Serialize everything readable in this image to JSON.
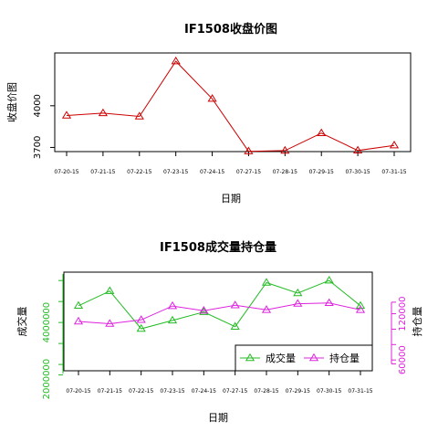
{
  "chart_data": [
    {
      "type": "line",
      "title": "IF1508收盘价图",
      "xlabel": "日期",
      "ylabel": "收盘价图",
      "categories": [
        "07-20-15",
        "07-21-15",
        "07-22-15",
        "07-23-15",
        "07-24-15",
        "07-27-15",
        "07-28-15",
        "07-29-15",
        "07-30-15",
        "07-31-15"
      ],
      "y_ticks": [
        3700,
        4000
      ],
      "ylim": [
        3670,
        4380
      ],
      "grid": false,
      "colors": {
        "line": "#cc0000",
        "axis": "#000000"
      },
      "series": [
        {
          "values": [
            3930,
            3947,
            3923,
            4320,
            4050,
            3672,
            3677,
            3803,
            3678,
            3715
          ]
        }
      ]
    },
    {
      "type": "line",
      "title": "IF1508成交量持仓量",
      "xlabel": "日期",
      "ylabel": "成交量",
      "ylabel_right": "持仓量",
      "categories": [
        "07-20-15",
        "07-21-15",
        "07-22-15",
        "07-23-15",
        "07-24-15",
        "07-27-15",
        "07-28-15",
        "07-29-15",
        "07-30-15",
        "07-31-15"
      ],
      "y_ticks_left": [
        2000000,
        4000000
      ],
      "ylim_left": [
        1700000,
        6400000
      ],
      "y_ticks_right": [
        60000,
        120000
      ],
      "ylim_right": [
        46000,
        174000
      ],
      "legend": {
        "position": "bottom-right"
      },
      "grid": false,
      "colors": {
        "left_axis": "#22bb22",
        "right_axis": "#dd22dd"
      },
      "series": [
        {
          "name": "成交量",
          "axis": "left",
          "color": "#22bb22",
          "values": [
            4800000,
            5500000,
            3700000,
            4100000,
            4500000,
            3800000,
            5900000,
            5400000,
            6000000,
            4800000
          ]
        },
        {
          "name": "持仓量",
          "axis": "right",
          "color": "#dd22dd",
          "values": [
            110000,
            107000,
            112000,
            130000,
            124000,
            131000,
            125000,
            133000,
            134000,
            125000
          ]
        }
      ]
    }
  ]
}
